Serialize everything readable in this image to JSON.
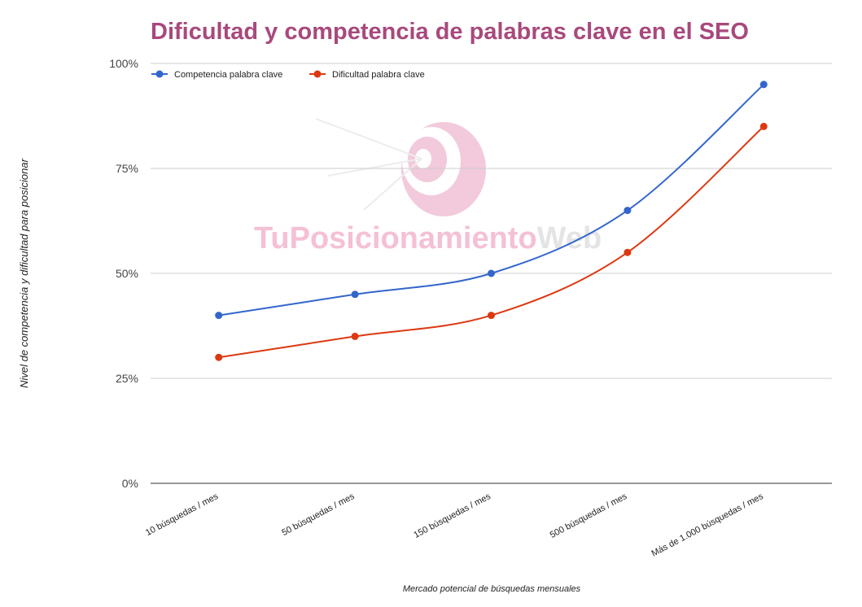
{
  "chart_data": {
    "type": "line",
    "title": "Dificultad y competencia de palabras clave en el SEO",
    "categories": [
      "10 búsquedas / mes",
      "50 búsquedas / mes",
      "150 búsquedas / mes",
      "500 búsquedas / mes",
      "Más de 1.000 búsquedas / mes"
    ],
    "series": [
      {
        "name": "Competencia palabra clave",
        "color": "#3366cc",
        "values": [
          40,
          45,
          50,
          65,
          95
        ]
      },
      {
        "name": "Dificultad palabra clave",
        "color": "#dc3912",
        "values": [
          30,
          35,
          40,
          55,
          85
        ]
      }
    ],
    "ylim": [
      0,
      100
    ],
    "yticks": [
      {
        "value": 0,
        "label": "0%"
      },
      {
        "value": 25,
        "label": "25%"
      },
      {
        "value": 50,
        "label": "50%"
      },
      {
        "value": 75,
        "label": "75%"
      },
      {
        "value": 100,
        "label": "100%"
      }
    ],
    "grid": true,
    "legend": "top-left",
    "smooth": true,
    "x_label": "Mercado potencial de búsquedas mensuales",
    "y_label": "Nivel de competencia y dificultad para posicionar",
    "watermark": [
      "TuPosicionamiento",
      "Web"
    ]
  }
}
